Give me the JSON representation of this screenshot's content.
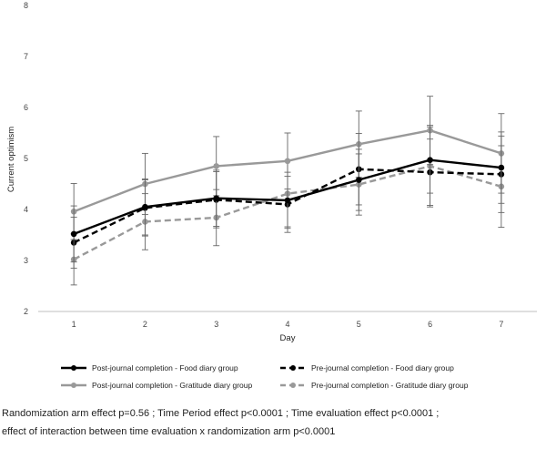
{
  "chart_data": {
    "type": "line",
    "xlabel": "Day",
    "ylabel": "Current optimism",
    "x": [
      1,
      2,
      3,
      4,
      5,
      6,
      7
    ],
    "xlim": [
      0.5,
      7.5
    ],
    "ylim": [
      2,
      8
    ],
    "yticks": [
      2,
      3,
      4,
      5,
      6,
      7,
      8
    ],
    "grid": false,
    "legend_position": "bottom",
    "series": [
      {
        "name": "Post-journal completion - Food diary group",
        "color": "#000000",
        "dash": "solid",
        "values": [
          3.52,
          4.05,
          4.22,
          4.18,
          4.58,
          4.97,
          4.82
        ],
        "err": [
          0.55,
          0.55,
          0.55,
          0.55,
          0.6,
          0.65,
          0.7
        ]
      },
      {
        "name": "Pre-journal completion - Food diary group",
        "color": "#000000",
        "dash": "dashed",
        "values": [
          3.35,
          4.03,
          4.19,
          4.1,
          4.79,
          4.73,
          4.69
        ],
        "err": [
          0.5,
          0.55,
          0.55,
          0.55,
          0.7,
          0.65,
          0.75
        ]
      },
      {
        "name": "Post-journal completion - Gratitude diary group",
        "color": "#999999",
        "dash": "solid",
        "values": [
          3.96,
          4.5,
          4.85,
          4.95,
          5.28,
          5.55,
          5.1
        ],
        "err": [
          0.55,
          0.6,
          0.58,
          0.55,
          0.65,
          0.67,
          0.78
        ]
      },
      {
        "name": "Pre-journal completion - Gratitude diary group",
        "color": "#999999",
        "dash": "dashed",
        "values": [
          3.02,
          3.76,
          3.84,
          4.31,
          4.49,
          4.85,
          4.45
        ],
        "err": [
          0.5,
          0.55,
          0.55,
          0.65,
          0.6,
          0.8,
          0.8
        ]
      }
    ]
  },
  "caption": {
    "line1": "Randomization arm effect p=0.56 ; Time Period effect p<0.0001 ; Time evaluation effect p<0.0001 ;",
    "line2": "effect of interaction between time evaluation x randomization arm p<0.0001"
  }
}
